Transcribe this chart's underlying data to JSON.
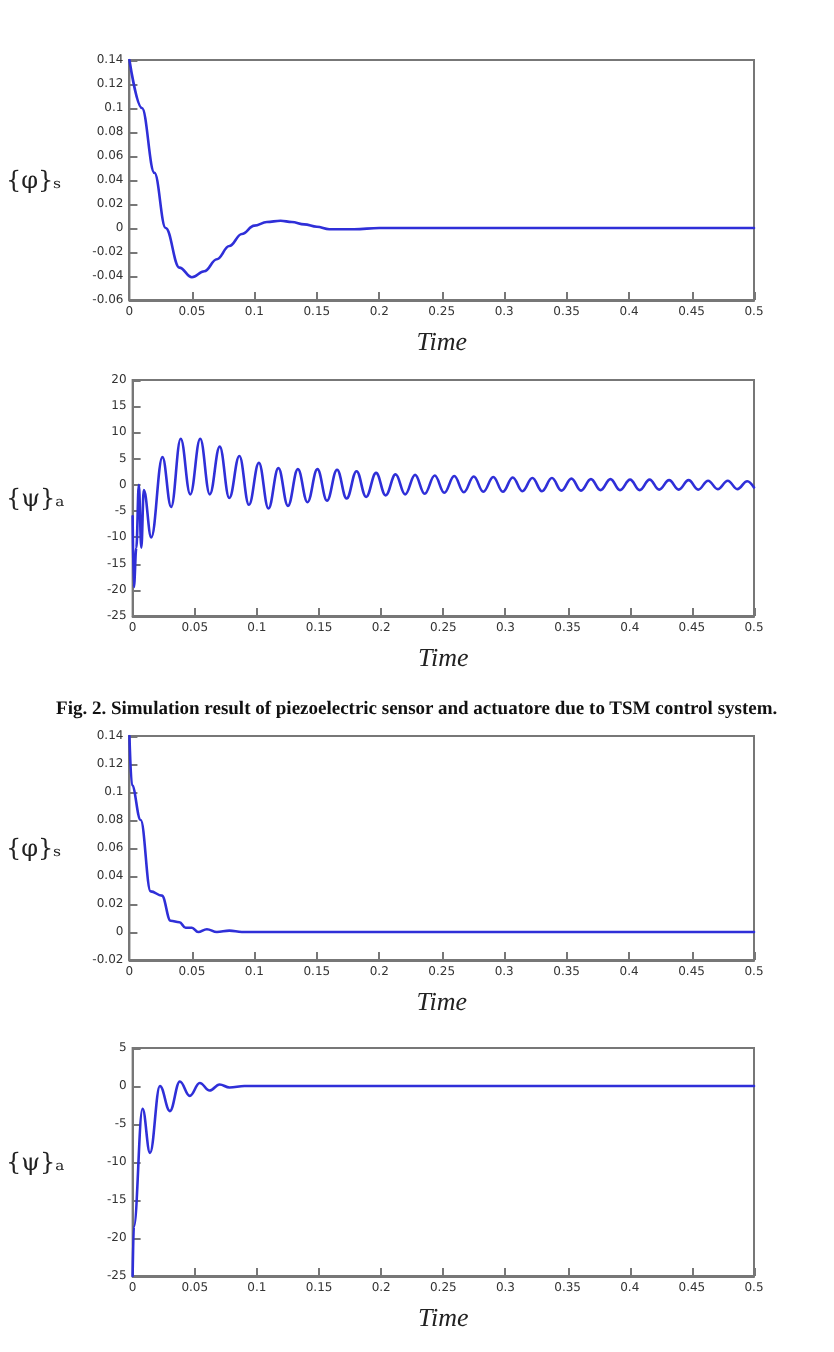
{
  "chart_data": [
    {
      "type": "line",
      "xlabel": "Time",
      "ylabel": "{φ}ₛ",
      "xlim": [
        0,
        0.5
      ],
      "xticks": [
        0,
        0.05,
        0.1,
        0.15,
        0.2,
        0.25,
        0.3,
        0.35,
        0.4,
        0.45,
        0.5
      ],
      "ylim": [
        -0.06,
        0.14
      ],
      "yticks": [
        -0.06,
        -0.04,
        -0.02,
        0,
        0.02,
        0.04,
        0.06,
        0.08,
        0.1,
        0.12,
        0.14
      ],
      "grid": false,
      "marker": "none",
      "line_style": "solid",
      "series": [
        {
          "color": "#2f2fd8",
          "x": [
            0,
            0.01,
            0.02,
            0.029,
            0.04,
            0.05,
            0.06,
            0.07,
            0.08,
            0.09,
            0.1,
            0.11,
            0.121,
            0.13,
            0.14,
            0.15,
            0.16,
            0.18,
            0.2,
            0.5
          ],
          "values": [
            0.14,
            0.1,
            0.046,
            0,
            -0.033,
            -0.041,
            -0.036,
            -0.026,
            -0.015,
            -0.005,
            0.002,
            0.005,
            0.006,
            0.005,
            0.003,
            0.001,
            -0.001,
            -0.001,
            0,
            0
          ]
        }
      ]
    },
    {
      "type": "line",
      "xlabel": "Time",
      "ylabel": "{ψ}ₐ",
      "annotations": [
        "Fig. 2. Simulation result of piezoelectric sensor and actuatore due to TSM control system."
      ],
      "xlim": [
        0,
        0.5
      ],
      "xticks": [
        0,
        0.05,
        0.1,
        0.15,
        0.2,
        0.25,
        0.3,
        0.35,
        0.4,
        0.45,
        0.5
      ],
      "ylim": [
        -25,
        20
      ],
      "yticks": [
        -25,
        -20,
        -15,
        -10,
        -5,
        0,
        5,
        10,
        15,
        20
      ],
      "grid": false,
      "marker": "none",
      "line_style": "solid",
      "series": [
        {
          "color": "#2f2fd8",
          "x": [
            0,
            0.001,
            0.003,
            0.005,
            0.007,
            0.009,
            0.015,
            0.024,
            0.031,
            0.0387,
            0.0464,
            0.0544,
            0.0621,
            0.0701,
            0.0778,
            0.0859,
            0.0936,
            0.1016,
            0.1093,
            0.1173,
            0.125,
            0.133,
            0.1407,
            0.1487,
            0.1564,
            0.1645,
            0.1722,
            0.1802,
            0.1879,
            0.1959,
            0.2036,
            0.2116,
            0.2193,
            0.2273,
            0.235,
            0.2431,
            0.2508,
            0.2588,
            0.2665,
            0.2745,
            0.2822,
            0.2902,
            0.2979,
            0.3059,
            0.3136,
            0.3217,
            0.3294,
            0.3374,
            0.3451,
            0.3531,
            0.3608,
            0.3688,
            0.3765,
            0.3845,
            0.3922,
            0.4003,
            0.408,
            0.416,
            0.4237,
            0.4317,
            0.4394,
            0.4474,
            0.4551,
            0.4631,
            0.4708,
            0.4789,
            0.4866,
            0.4946,
            0.5
          ],
          "values": [
            -6,
            -19.5,
            -12,
            0,
            -12,
            -1,
            -10,
            5.3,
            -4.2,
            8.8,
            -1.8,
            8.8,
            -1.8,
            7.3,
            -2.5,
            5.5,
            -3.8,
            4.2,
            -4.5,
            3.2,
            -4,
            3,
            -3.3,
            3,
            -3,
            2.9,
            -2.6,
            2.6,
            -2.3,
            2.3,
            -2,
            2,
            -1.8,
            1.9,
            -1.7,
            1.8,
            -1.5,
            1.7,
            -1.4,
            1.6,
            -1.3,
            1.5,
            -1.3,
            1.4,
            -1.2,
            1.3,
            -1.2,
            1.3,
            -1.1,
            1.2,
            -1.1,
            1.1,
            -1,
            1.1,
            -1,
            1,
            -1,
            1,
            -0.9,
            0.9,
            -0.9,
            0.9,
            -0.9,
            0.8,
            -0.8,
            0.8,
            -0.8,
            0.7,
            -0.5
          ]
        }
      ]
    },
    {
      "type": "line",
      "xlabel": "Time",
      "ylabel": "{φ}ₛ",
      "xlim": [
        0,
        0.5
      ],
      "xticks": [
        0,
        0.05,
        0.1,
        0.15,
        0.2,
        0.25,
        0.3,
        0.35,
        0.4,
        0.45,
        0.5
      ],
      "ylim": [
        -0.02,
        0.14
      ],
      "yticks": [
        -0.02,
        0,
        0.02,
        0.04,
        0.06,
        0.08,
        0.1,
        0.12,
        0.14
      ],
      "grid": false,
      "marker": "none",
      "line_style": "solid",
      "series": [
        {
          "color": "#2f2fd8",
          "x": [
            0,
            0.002,
            0.009,
            0.017,
            0.026,
            0.033,
            0.04,
            0.045,
            0.05,
            0.055,
            0.062,
            0.07,
            0.08,
            0.09,
            0.5
          ],
          "values": [
            0.14,
            0.105,
            0.08,
            0.029,
            0.026,
            0.008,
            0.007,
            0.003,
            0.003,
            0,
            0.002,
            0,
            0.001,
            0,
            0
          ]
        }
      ]
    },
    {
      "type": "line",
      "xlabel": "Time",
      "ylabel": "{ψ}ₐ",
      "xlim": [
        0,
        0.5
      ],
      "xticks": [
        0,
        0.05,
        0.1,
        0.15,
        0.2,
        0.25,
        0.3,
        0.35,
        0.4,
        0.45,
        0.5
      ],
      "ylim": [
        -25,
        5
      ],
      "yticks": [
        -25,
        -20,
        -15,
        -10,
        -5,
        0,
        5
      ],
      "grid": false,
      "marker": "none",
      "line_style": "solid",
      "series": [
        {
          "color": "#2f2fd8",
          "x": [
            0,
            0.001,
            0.008,
            0.014,
            0.022,
            0.03,
            0.038,
            0.046,
            0.054,
            0.062,
            0.07,
            0.078,
            0.09,
            0.1,
            0.5
          ],
          "values": [
            -25,
            -18.5,
            -3,
            -8.8,
            0,
            -3.3,
            0.6,
            -1.3,
            0.4,
            -0.6,
            0.2,
            -0.2,
            0,
            0,
            0
          ]
        }
      ]
    }
  ]
}
